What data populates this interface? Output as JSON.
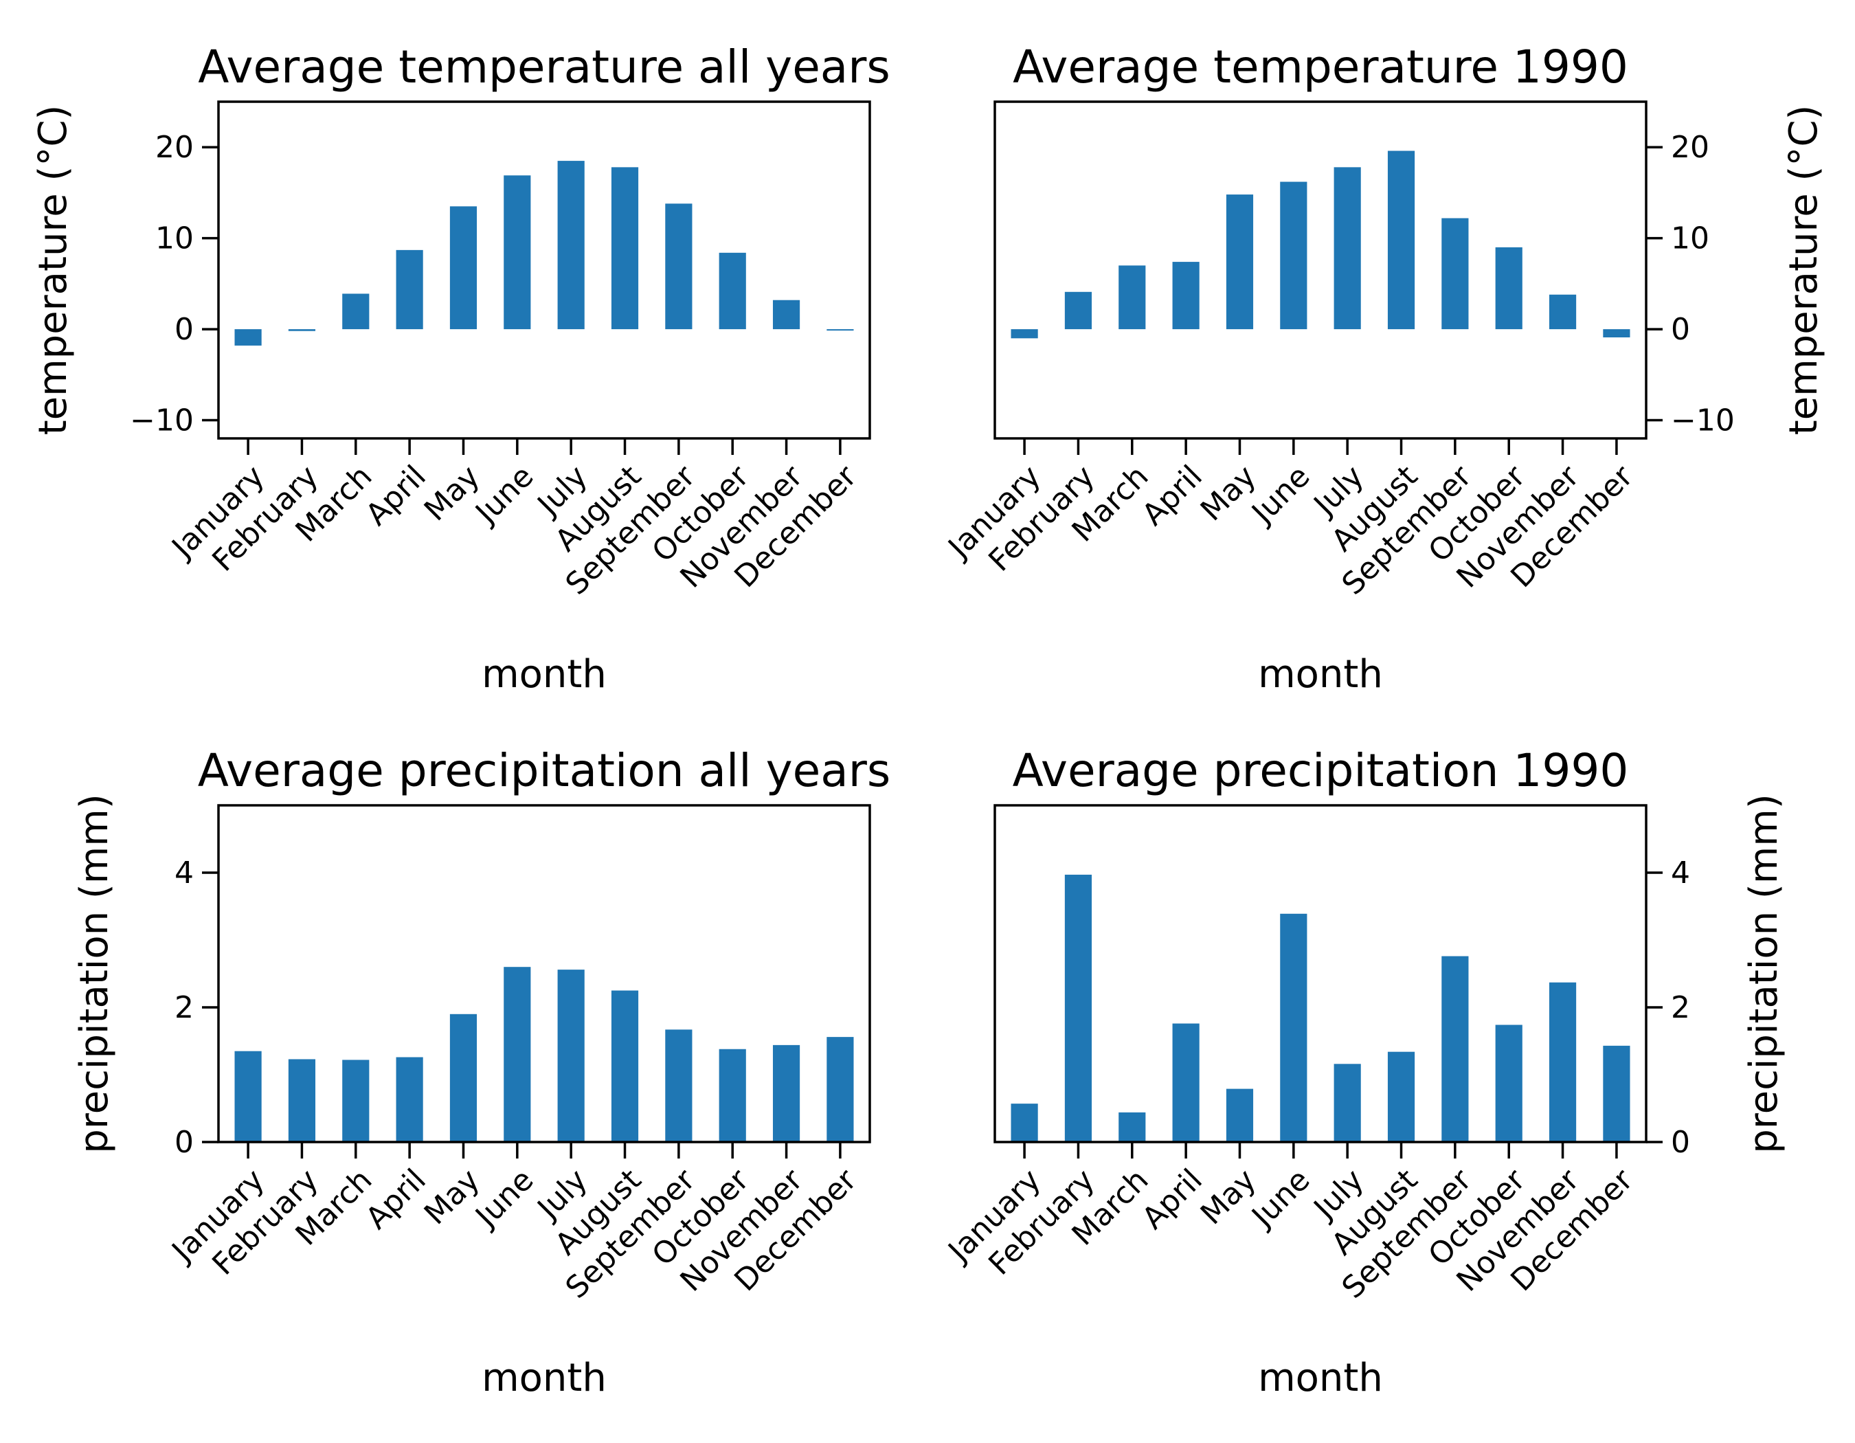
{
  "chart_data": [
    {
      "type": "bar",
      "title": "Average temperature all years",
      "xlabel": "month",
      "ylabel": "temperature (°C)",
      "ylim": [
        -12,
        25
      ],
      "yticks": [
        -10,
        0,
        10,
        20
      ],
      "ytick_labels": [
        "−10",
        "0",
        "10",
        "20"
      ],
      "yaxis_side": "left",
      "grid": false,
      "color": "#1f77b4",
      "categories": [
        "January",
        "February",
        "March",
        "April",
        "May",
        "June",
        "July",
        "August",
        "September",
        "October",
        "November",
        "December"
      ],
      "values": [
        -1.8,
        -0.2,
        3.9,
        8.7,
        13.5,
        16.9,
        18.5,
        17.8,
        13.8,
        8.4,
        3.2,
        -0.1
      ]
    },
    {
      "type": "bar",
      "title": "Average temperature 1990",
      "xlabel": "month",
      "ylabel": "temperature (°C)",
      "ylim": [
        -12,
        25
      ],
      "yticks": [
        -10,
        0,
        10,
        20
      ],
      "ytick_labels": [
        "−10",
        "0",
        "10",
        "20"
      ],
      "yaxis_side": "right",
      "grid": false,
      "color": "#1f77b4",
      "categories": [
        "January",
        "February",
        "March",
        "April",
        "May",
        "June",
        "July",
        "August",
        "September",
        "October",
        "November",
        "December"
      ],
      "values": [
        -1.0,
        4.1,
        7.0,
        7.4,
        14.8,
        16.2,
        17.8,
        19.6,
        12.2,
        9.0,
        3.8,
        -0.9
      ]
    },
    {
      "type": "bar",
      "title": "Average precipitation all years",
      "xlabel": "month",
      "ylabel": "precipitation (mm)",
      "ylim": [
        0,
        5
      ],
      "yticks": [
        0,
        2,
        4
      ],
      "ytick_labels": [
        "0",
        "2",
        "4"
      ],
      "yaxis_side": "left",
      "grid": false,
      "color": "#1f77b4",
      "categories": [
        "January",
        "February",
        "March",
        "April",
        "May",
        "June",
        "July",
        "August",
        "September",
        "October",
        "November",
        "December"
      ],
      "values": [
        1.35,
        1.23,
        1.22,
        1.26,
        1.9,
        2.6,
        2.56,
        2.25,
        1.67,
        1.38,
        1.44,
        1.56
      ]
    },
    {
      "type": "bar",
      "title": "Average precipitation 1990",
      "xlabel": "month",
      "ylabel": "precipitation (mm)",
      "ylim": [
        0,
        5
      ],
      "yticks": [
        0,
        2,
        4
      ],
      "ytick_labels": [
        "0",
        "2",
        "4"
      ],
      "yaxis_side": "right",
      "grid": false,
      "color": "#1f77b4",
      "categories": [
        "January",
        "February",
        "March",
        "April",
        "May",
        "June",
        "July",
        "August",
        "September",
        "October",
        "November",
        "December"
      ],
      "values": [
        0.57,
        3.97,
        0.44,
        1.76,
        0.79,
        3.39,
        1.16,
        1.34,
        2.76,
        1.74,
        2.37,
        1.43
      ]
    }
  ]
}
